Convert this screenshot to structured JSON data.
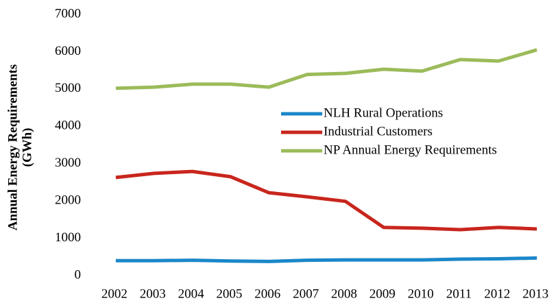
{
  "chart_data": {
    "type": "line",
    "y_label": [
      "Annual Energy Requirements",
      "(GWh)"
    ],
    "categories": [
      "2002",
      "2003",
      "2004",
      "2005",
      "2006",
      "2007",
      "2008",
      "2009",
      "2010",
      "2011",
      "2012",
      "2013"
    ],
    "series": [
      {
        "name": "NLH Rural Operations",
        "color": "#1b87c9",
        "values": [
          400,
          400,
          410,
          390,
          380,
          410,
          420,
          420,
          420,
          440,
          450,
          470
        ]
      },
      {
        "name": "Industrial Customers",
        "color": "#c8261d",
        "values": [
          2630,
          2740,
          2790,
          2650,
          2220,
          2110,
          1990,
          1290,
          1270,
          1230,
          1290,
          1250
        ]
      },
      {
        "name": "NP Annual Energy Requirements",
        "color": "#9bbb59",
        "values": [
          5020,
          5050,
          5130,
          5130,
          5050,
          5390,
          5420,
          5530,
          5480,
          5790,
          5750,
          6050
        ]
      }
    ],
    "ylim": [
      0,
      7000
    ],
    "yticks": [
      0,
      1000,
      2000,
      3000,
      4000,
      5000,
      6000,
      7000
    ],
    "grid": false,
    "legend": "center"
  }
}
